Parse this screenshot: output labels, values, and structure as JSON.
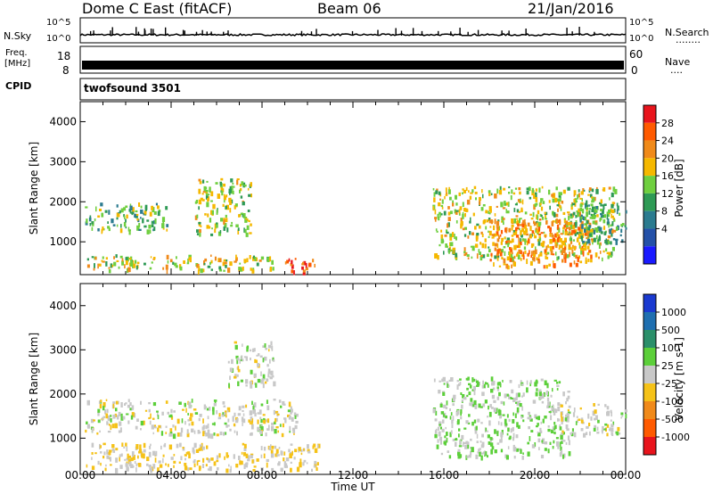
{
  "header": {
    "station": "Dome C East (fitACF)",
    "beam": "Beam 06",
    "date": "21/Jan/2016"
  },
  "top_panels": {
    "nsky_label": "N.Sky",
    "nsky_ticks": [
      "10^5",
      "10^0"
    ],
    "nsearch_label": "N.Search",
    "nsearch_ticks": [
      "10^5",
      "10^0"
    ],
    "nsearch_dots": "........",
    "freq_label_line1": "Freq.",
    "freq_label_line2": "[MHz]",
    "freq_ticks": [
      "18",
      "8"
    ],
    "nave_label": "Nave",
    "nave_ticks": [
      "60",
      "0"
    ],
    "nave_dots": "....",
    "cpid_label": "CPID",
    "cpid_value": "twofsound 3501"
  },
  "chart_data": [
    {
      "type": "heatmap",
      "panel": "power",
      "xlabel": "Time UT",
      "ylabel": "Slant Range [km]",
      "x_ticks": [
        "00:00",
        "04:00",
        "08:00",
        "12:00",
        "16:00",
        "20:00",
        "00:00"
      ],
      "y_ticks": [
        "4000",
        "3000",
        "2000",
        "1000"
      ],
      "ylim": [
        180,
        4500
      ],
      "colorbar": {
        "label": "Power [dB]",
        "ticks": [
          "28",
          "24",
          "20",
          "16",
          "12",
          "8",
          "4"
        ],
        "colors": [
          "#e8141c",
          "#ff5a00",
          "#f08a1a",
          "#f5b800",
          "#6fcf3f",
          "#2e9a55",
          "#2b7b8f",
          "#2451a8",
          "#1a1aff"
        ]
      },
      "regions": [
        {
          "t0": 0.2,
          "t1": 3.8,
          "r0": 1300,
          "r1": 2000,
          "level": 14
        },
        {
          "t0": 0.3,
          "t1": 8.5,
          "r0": 300,
          "r1": 700,
          "level": 18
        },
        {
          "t0": 5.0,
          "t1": 7.5,
          "r0": 1200,
          "r1": 2600,
          "level": 17
        },
        {
          "t0": 9.0,
          "t1": 10.3,
          "r0": 200,
          "r1": 600,
          "level": 28
        },
        {
          "t0": 15.5,
          "t1": 23.5,
          "r0": 600,
          "r1": 2400,
          "level": 18
        },
        {
          "t0": 18.0,
          "t1": 22.5,
          "r0": 400,
          "r1": 1600,
          "level": 24
        },
        {
          "t0": 21.5,
          "t1": 24.0,
          "r0": 1000,
          "r1": 2000,
          "level": 12
        }
      ]
    },
    {
      "type": "heatmap",
      "panel": "velocity",
      "xlabel": "Time UT",
      "ylabel": "Slant Range [km]",
      "x_ticks": [
        "00:00",
        "04:00",
        "08:00",
        "12:00",
        "16:00",
        "20:00",
        "00:00"
      ],
      "y_ticks": [
        "4000",
        "3000",
        "2000",
        "1000"
      ],
      "ylim": [
        180,
        4500
      ],
      "colorbar": {
        "label": "Velocity [m s-1]",
        "ticks": [
          "1000",
          "500",
          "100",
          "25",
          "-25",
          "-100",
          "-500",
          "-1000"
        ],
        "colors": [
          "#1a3ad0",
          "#1f6fb0",
          "#2b8f6a",
          "#5ccf3a",
          "#c8c8c8",
          "#f5c218",
          "#f08a1a",
          "#ff5a00",
          "#e8141c"
        ]
      },
      "regions": [
        {
          "t0": 0.2,
          "t1": 9.5,
          "r0": 1100,
          "r1": 1900,
          "level": 0
        },
        {
          "t0": 0.2,
          "t1": 10.5,
          "r0": 300,
          "r1": 900,
          "level": -150
        },
        {
          "t0": 6.5,
          "t1": 8.5,
          "r0": 2200,
          "r1": 3200,
          "level": 0
        },
        {
          "t0": 15.5,
          "t1": 21.5,
          "r0": 600,
          "r1": 2400,
          "level": 150
        },
        {
          "t0": 21.0,
          "t1": 24.0,
          "r0": 1100,
          "r1": 1800,
          "level": 0
        }
      ]
    }
  ]
}
